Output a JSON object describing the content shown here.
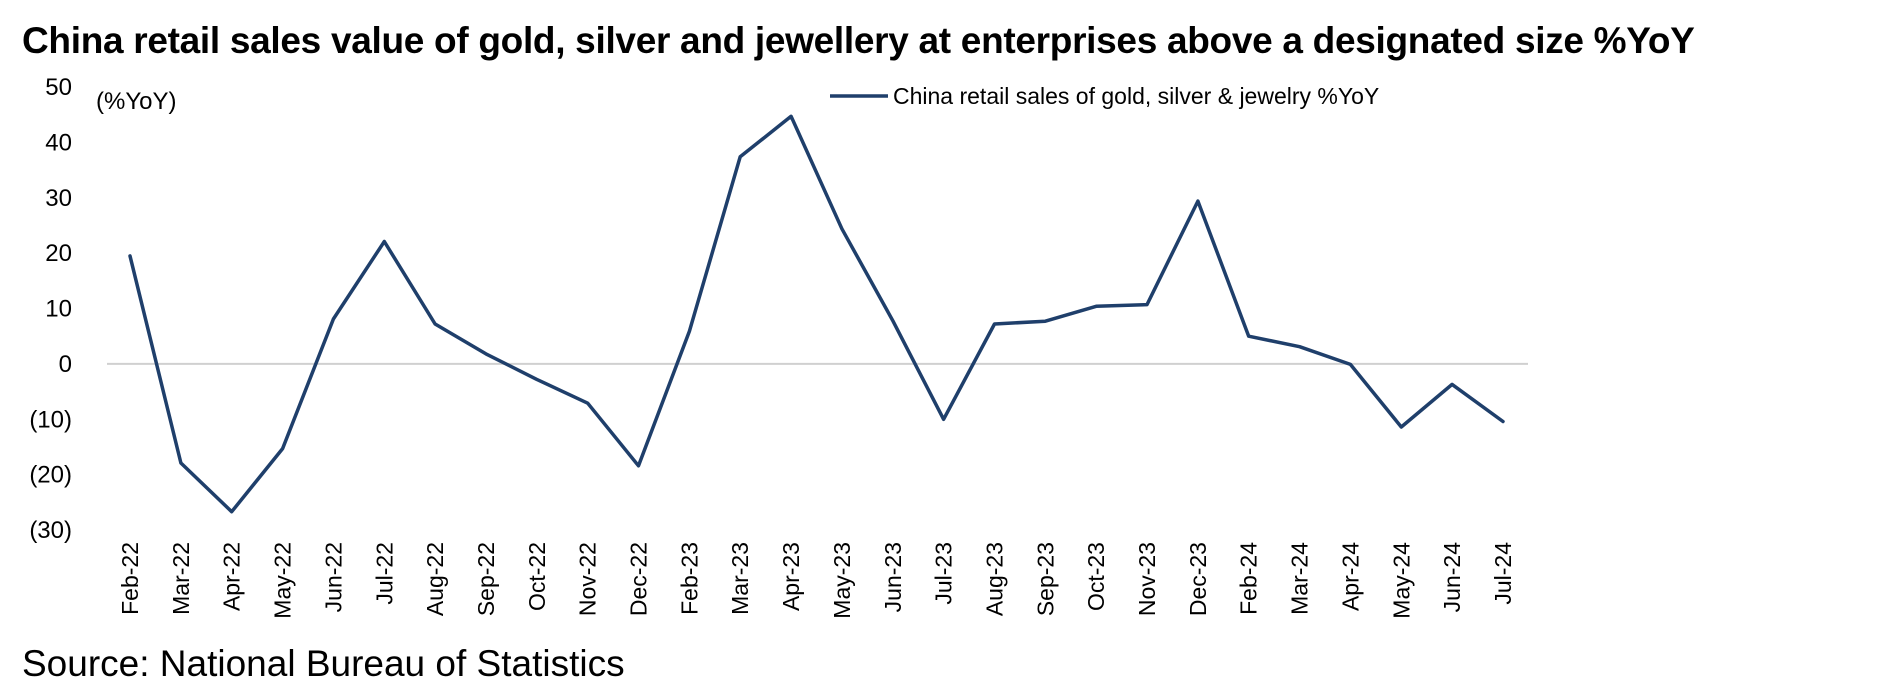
{
  "title": "China retail sales value of gold, silver and jewellery at enterprises above a designated size %YoY",
  "source": "Source: National Bureau of Statistics",
  "colors": {
    "line": "#1f3f6b",
    "zero_line": "#d0d0d0",
    "text": "#000000"
  },
  "chart_data": {
    "type": "line",
    "title": "China retail sales value of gold, silver and jewellery at enterprises above a designated size %YoY",
    "ylabel": "(%YoY)",
    "xlabel": "",
    "ylim": [
      -30,
      50
    ],
    "yticks": [
      50,
      40,
      30,
      20,
      10,
      0,
      -10,
      -20,
      -30
    ],
    "ytick_labels": [
      "50",
      "40",
      "30",
      "20",
      "10",
      "0",
      "(10)",
      "(20)",
      "(30)"
    ],
    "grid": false,
    "zero_line": true,
    "legend": "top-center",
    "categories": [
      "Feb-22",
      "Mar-22",
      "Apr-22",
      "May-22",
      "Jun-22",
      "Jul-22",
      "Aug-22",
      "Sep-22",
      "Oct-22",
      "Nov-22",
      "Dec-22",
      "Feb-23",
      "Mar-23",
      "Apr-23",
      "May-23",
      "Jun-23",
      "Jul-23",
      "Aug-23",
      "Sep-23",
      "Oct-23",
      "Nov-23",
      "Dec-23",
      "Feb-24",
      "Mar-24",
      "Apr-24",
      "May-24",
      "Jun-24",
      "Jul-24"
    ],
    "series": [
      {
        "name": "China retail sales of gold, silver & jewelry %YoY",
        "color": "#1f3f6b",
        "values": [
          19.5,
          -17.9,
          -26.7,
          -15.3,
          8.1,
          22.1,
          7.2,
          1.8,
          -2.8,
          -7.1,
          -18.4,
          5.9,
          37.4,
          44.7,
          24.4,
          7.8,
          -10.0,
          7.2,
          7.7,
          10.4,
          10.7,
          29.4,
          5.0,
          3.1,
          -0.1,
          -11.4,
          -3.7,
          -10.4
        ]
      }
    ]
  }
}
